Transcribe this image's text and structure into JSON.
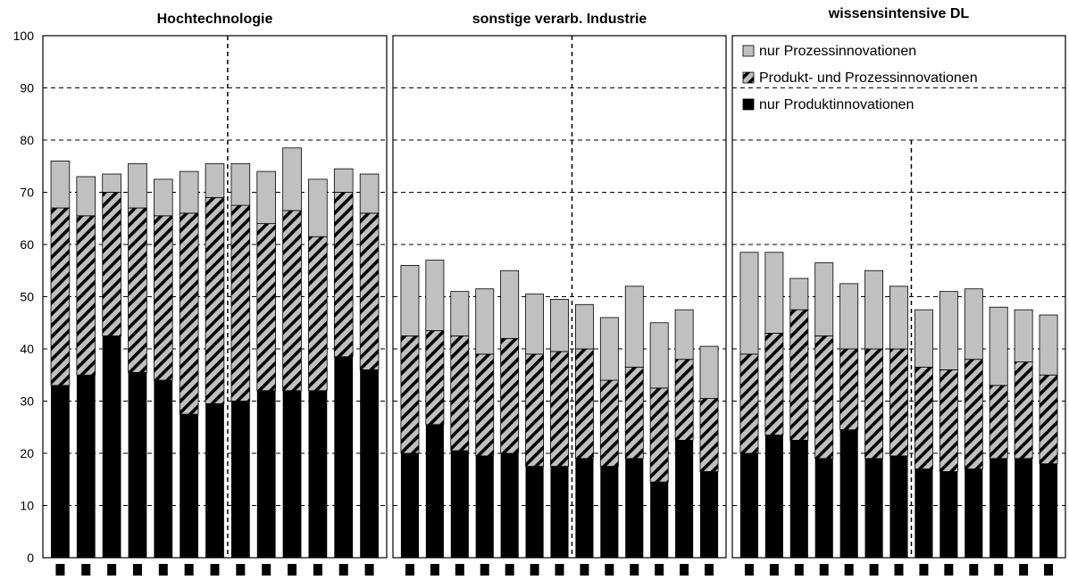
{
  "chart_data": {
    "type": "bar",
    "stacked": true,
    "ylim": [
      0,
      100
    ],
    "yticks": [
      0,
      10,
      20,
      30,
      40,
      50,
      60,
      70,
      80,
      90,
      100
    ],
    "grid": "horizontal-dashed",
    "legend": {
      "placement": "top-right",
      "entries": [
        {
          "label": "nur Prozessinnovationen",
          "fill": "#c0c0c0"
        },
        {
          "label": "Produkt- und Prozessinnovationen",
          "fill": "hatch"
        },
        {
          "label": "nur Produktinnovationen",
          "fill": "#000000"
        }
      ]
    },
    "series_names": [
      "nur Produktinnovationen",
      "Produkt- und Prozessinnovationen",
      "nur Prozessinnovationen"
    ],
    "panels": [
      {
        "title": "Hochtechnologie",
        "divider_after": 7,
        "produkt": [
          33,
          35,
          42.5,
          35.5,
          34,
          27.5,
          29.5,
          30,
          32,
          32,
          32,
          38.5,
          36
        ],
        "beide": [
          34,
          30.5,
          27.5,
          31.5,
          31.5,
          38.5,
          39.5,
          37.5,
          32,
          34.5,
          29.5,
          31.5,
          30
        ],
        "prozess": [
          9,
          7.5,
          3.5,
          8.5,
          7,
          8,
          6.5,
          8,
          10,
          12,
          11,
          4.5,
          7.5
        ]
      },
      {
        "title": "sonstige verarb. Industrie",
        "divider_after": 7,
        "produkt": [
          20,
          25.5,
          20.5,
          19.5,
          20,
          17.5,
          17.5,
          19,
          17.5,
          19,
          14.5,
          22.5,
          16.5
        ],
        "beide": [
          22.5,
          18,
          22,
          19.5,
          22,
          21.5,
          22,
          21,
          16.5,
          17.5,
          18,
          15.5,
          14
        ],
        "prozess": [
          13.5,
          13.5,
          8.5,
          12.5,
          13,
          11.5,
          10,
          8.5,
          12,
          15.5,
          12.5,
          9.5,
          10
        ]
      },
      {
        "title": "wissensintensive DL",
        "divider_after": 7,
        "produkt": [
          20,
          23.5,
          22.5,
          19,
          24.5,
          19,
          19.5,
          17,
          16.5,
          17,
          19,
          19,
          18
        ],
        "beide": [
          19,
          19.5,
          25,
          23.5,
          15.5,
          21,
          20.5,
          19.5,
          19.5,
          21,
          14,
          18.5,
          17
        ],
        "prozess": [
          19.5,
          15.5,
          6,
          14,
          12.5,
          15,
          12,
          11,
          15,
          13.5,
          15,
          10,
          11.5
        ]
      }
    ]
  }
}
